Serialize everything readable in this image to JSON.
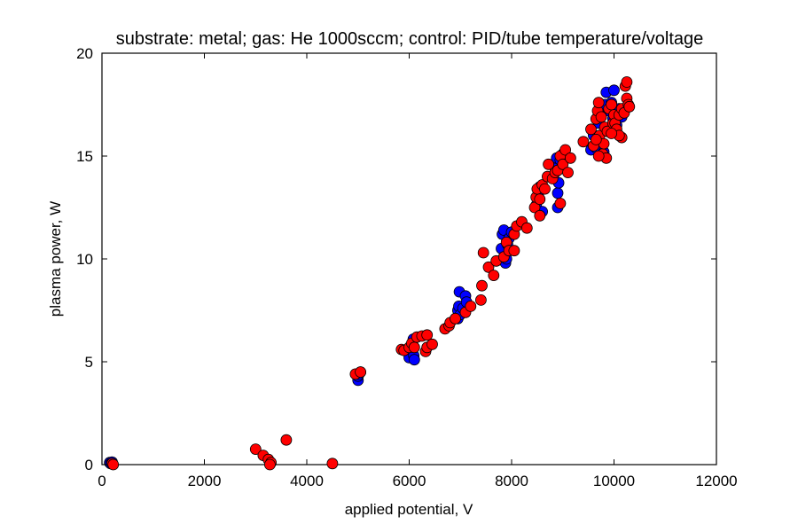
{
  "chart_data": {
    "type": "scatter",
    "title": "substrate: metal; gas: He 1000sccm; control: PID/tube temperature/voltage",
    "xlabel": "applied potential, V",
    "ylabel": "plasma power, W",
    "xlim": [
      0,
      12000
    ],
    "ylim": [
      0,
      20
    ],
    "xticks": [
      0,
      2000,
      4000,
      6000,
      8000,
      10000,
      12000
    ],
    "yticks": [
      0,
      5,
      10,
      15,
      20
    ],
    "grid": false,
    "legend": "none",
    "series": [
      {
        "color": "#0000ff",
        "points": [
          [
            150,
            0.1
          ],
          [
            170,
            0.05
          ],
          [
            200,
            0.12
          ],
          [
            5000,
            4.1
          ],
          [
            5000,
            4.3
          ],
          [
            5020,
            4.4
          ],
          [
            5050,
            4.5
          ],
          [
            6000,
            5.2
          ],
          [
            6030,
            5.6
          ],
          [
            6060,
            5.9
          ],
          [
            6080,
            6.1
          ],
          [
            6090,
            5.3
          ],
          [
            6100,
            5.1
          ],
          [
            6950,
            7.1
          ],
          [
            6950,
            7.5
          ],
          [
            6970,
            7.7
          ],
          [
            6980,
            8.4
          ],
          [
            7000,
            7.3
          ],
          [
            7050,
            7.6
          ],
          [
            7100,
            8.2
          ],
          [
            7120,
            7.9
          ],
          [
            7800,
            10.5
          ],
          [
            7820,
            11.2
          ],
          [
            7850,
            11.4
          ],
          [
            7880,
            9.8
          ],
          [
            7900,
            10.0
          ],
          [
            7920,
            10.7
          ],
          [
            7950,
            11.0
          ],
          [
            8000,
            11.3
          ],
          [
            8480,
            12.6
          ],
          [
            8520,
            13.1
          ],
          [
            8550,
            13.5
          ],
          [
            8600,
            12.3
          ],
          [
            8850,
            14.4
          ],
          [
            8880,
            14.9
          ],
          [
            8900,
            13.2
          ],
          [
            8900,
            12.5
          ],
          [
            8920,
            13.7
          ],
          [
            8950,
            14.8
          ],
          [
            9000,
            15.1
          ],
          [
            9550,
            15.3
          ],
          [
            9600,
            16.0
          ],
          [
            9650,
            15.4
          ],
          [
            9700,
            16.6
          ],
          [
            9750,
            17.1
          ],
          [
            9800,
            15.2
          ],
          [
            9820,
            17.5
          ],
          [
            9850,
            18.1
          ],
          [
            9880,
            16.3
          ],
          [
            9900,
            17.2
          ],
          [
            9950,
            17.6
          ],
          [
            9980,
            16.8
          ],
          [
            10000,
            18.2
          ],
          [
            10020,
            17.0
          ],
          [
            10050,
            16.5
          ],
          [
            10100,
            17.3
          ],
          [
            10150,
            16.9
          ]
        ]
      },
      {
        "color": "#ff0000",
        "points": [
          [
            200,
            0.05
          ],
          [
            220,
            0.0
          ],
          [
            3000,
            0.75
          ],
          [
            3150,
            0.45
          ],
          [
            3250,
            0.25
          ],
          [
            3300,
            0.1
          ],
          [
            3280,
            0.0
          ],
          [
            3600,
            1.2
          ],
          [
            4500,
            0.05
          ],
          [
            4950,
            4.4
          ],
          [
            5050,
            4.5
          ],
          [
            5850,
            5.6
          ],
          [
            5900,
            5.55
          ],
          [
            6000,
            5.7
          ],
          [
            6050,
            5.9
          ],
          [
            6100,
            5.7
          ],
          [
            6150,
            6.2
          ],
          [
            6250,
            6.25
          ],
          [
            6320,
            5.5
          ],
          [
            6350,
            5.7
          ],
          [
            6350,
            6.3
          ],
          [
            6450,
            5.85
          ],
          [
            6700,
            6.6
          ],
          [
            6780,
            6.75
          ],
          [
            6800,
            6.9
          ],
          [
            6900,
            7.1
          ],
          [
            7100,
            7.4
          ],
          [
            7200,
            7.7
          ],
          [
            7400,
            8.0
          ],
          [
            7420,
            8.7
          ],
          [
            7450,
            10.3
          ],
          [
            7550,
            9.6
          ],
          [
            7650,
            9.2
          ],
          [
            7700,
            9.9
          ],
          [
            7850,
            10.1
          ],
          [
            7900,
            10.8
          ],
          [
            7950,
            10.4
          ],
          [
            8050,
            10.4
          ],
          [
            8050,
            11.2
          ],
          [
            8100,
            11.6
          ],
          [
            8200,
            11.8
          ],
          [
            8300,
            11.5
          ],
          [
            8450,
            12.5
          ],
          [
            8480,
            13.0
          ],
          [
            8500,
            13.4
          ],
          [
            8550,
            12.9
          ],
          [
            8550,
            12.1
          ],
          [
            8600,
            13.6
          ],
          [
            8650,
            13.4
          ],
          [
            8700,
            14.0
          ],
          [
            8720,
            14.6
          ],
          [
            8800,
            13.9
          ],
          [
            8850,
            14.2
          ],
          [
            8900,
            14.3
          ],
          [
            8950,
            12.7
          ],
          [
            8950,
            15.0
          ],
          [
            9000,
            14.6
          ],
          [
            9050,
            15.3
          ],
          [
            9100,
            14.2
          ],
          [
            9150,
            14.9
          ],
          [
            9400,
            15.7
          ],
          [
            9550,
            16.3
          ],
          [
            9600,
            15.5
          ],
          [
            9650,
            16.8
          ],
          [
            9680,
            17.2
          ],
          [
            9700,
            17.6
          ],
          [
            9720,
            16.0
          ],
          [
            9750,
            16.9
          ],
          [
            9780,
            15.1
          ],
          [
            9800,
            15.6
          ],
          [
            9820,
            16.4
          ],
          [
            9850,
            14.9
          ],
          [
            9870,
            16.2
          ],
          [
            9900,
            17.3
          ],
          [
            9950,
            17.5
          ],
          [
            9980,
            16.6
          ],
          [
            10000,
            17.0
          ],
          [
            10020,
            16.6
          ],
          [
            10050,
            16.3
          ],
          [
            10100,
            17.0
          ],
          [
            10150,
            17.3
          ],
          [
            10150,
            15.9
          ],
          [
            10200,
            17.1
          ],
          [
            10220,
            18.4
          ],
          [
            10250,
            18.6
          ],
          [
            10250,
            17.8
          ],
          [
            10280,
            17.5
          ],
          [
            10300,
            17.4
          ],
          [
            10100,
            16.0
          ],
          [
            9950,
            16.1
          ],
          [
            9650,
            15.8
          ],
          [
            9700,
            15.0
          ]
        ]
      }
    ]
  }
}
